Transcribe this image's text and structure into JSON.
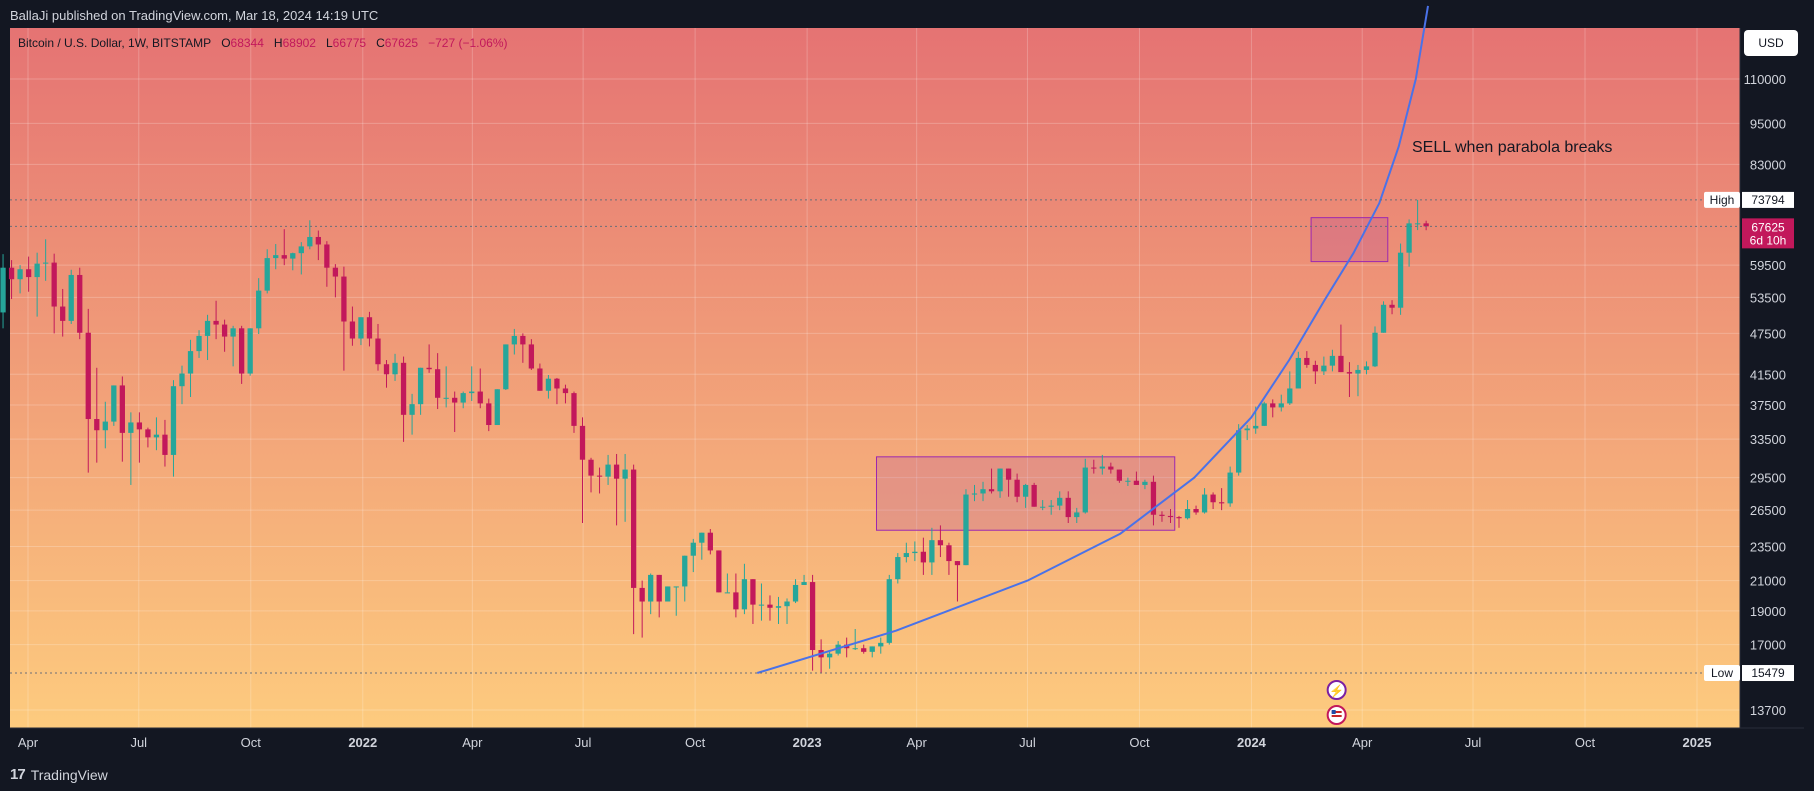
{
  "header": {
    "publisher_line": "BallaJi published on TradingView.com, Mar 18, 2024 14:19 UTC"
  },
  "footer": {
    "brand": "TradingView"
  },
  "legend": {
    "symbol": "Bitcoin / U.S. Dollar, 1W, BITSTAMP",
    "open_label": "O",
    "open": "68344",
    "high_label": "H",
    "high": "68902",
    "low_label": "L",
    "low": "66775",
    "close_label": "C",
    "close": "67625",
    "change": "−727 (−1.06%)"
  },
  "currency_button": "USD",
  "annotation": "SELL when parabola breaks",
  "price_tags": {
    "high_label": "High",
    "high_value": "73794",
    "low_label": "Low",
    "low_value": "15479",
    "last_value": "67625",
    "countdown": "6d 10h"
  },
  "colors": {
    "up": "#26a69a",
    "down": "#c2185b",
    "parabola": "#4a72e8",
    "box": "#9c27b0",
    "bg_top": "#e57373",
    "bg_bottom": "#fdcb7e"
  },
  "chart_data": {
    "type": "candlestick",
    "title": "Bitcoin / U.S. Dollar, 1W, BITSTAMP",
    "y_scale": "log",
    "ylim": [
      12900,
      145000
    ],
    "y_ticks": [
      13700,
      17000,
      19000,
      21000,
      23500,
      26500,
      29500,
      33500,
      37500,
      41500,
      47500,
      53500,
      59500,
      83000,
      95000,
      110000
    ],
    "x_ticks": [
      {
        "date": "2021-04-01",
        "label": "Apr"
      },
      {
        "date": "2021-07-01",
        "label": "Jul"
      },
      {
        "date": "2021-10-01",
        "label": "Oct"
      },
      {
        "date": "2022-01-01",
        "label": "2022"
      },
      {
        "date": "2022-04-01",
        "label": "Apr"
      },
      {
        "date": "2022-07-01",
        "label": "Jul"
      },
      {
        "date": "2022-10-01",
        "label": "Oct"
      },
      {
        "date": "2023-01-01",
        "label": "2023"
      },
      {
        "date": "2023-04-01",
        "label": "Apr"
      },
      {
        "date": "2023-07-01",
        "label": "Jul"
      },
      {
        "date": "2023-10-01",
        "label": "Oct"
      },
      {
        "date": "2024-01-01",
        "label": "2024"
      },
      {
        "date": "2024-04-01",
        "label": "Apr"
      },
      {
        "date": "2024-07-01",
        "label": "Jul"
      },
      {
        "date": "2024-10-01",
        "label": "Oct"
      },
      {
        "date": "2025-01-01",
        "label": "2025"
      }
    ],
    "candles_start_date": "2021-03-08",
    "candles_weekly": [
      [
        50900,
        61700,
        48300,
        59000
      ],
      [
        59000,
        60500,
        53200,
        56800
      ],
      [
        56800,
        59500,
        54200,
        58700
      ],
      [
        58700,
        61200,
        54500,
        57200
      ],
      [
        57200,
        62000,
        50200,
        59800
      ],
      [
        59800,
        64800,
        56500,
        60000
      ],
      [
        60000,
        61800,
        47500,
        51900
      ],
      [
        51900,
        55000,
        47000,
        49500
      ],
      [
        49500,
        58600,
        49000,
        57600
      ],
      [
        57600,
        59000,
        46600,
        47600
      ],
      [
        47600,
        51500,
        30000,
        35800
      ],
      [
        35800,
        42400,
        31000,
        34500
      ],
      [
        34500,
        37900,
        32500,
        35500
      ],
      [
        35500,
        39900,
        35000,
        40000
      ],
      [
        40000,
        41200,
        31100,
        34200
      ],
      [
        34200,
        36600,
        28800,
        35400
      ],
      [
        35400,
        36600,
        31000,
        34600
      ],
      [
        34600,
        34800,
        32600,
        33700
      ],
      [
        33700,
        36000,
        32300,
        34000
      ],
      [
        34000,
        35700,
        30600,
        31800
      ],
      [
        31800,
        40700,
        29600,
        39900
      ],
      [
        39900,
        42700,
        37600,
        41600
      ],
      [
        41600,
        46500,
        38500,
        44800
      ],
      [
        44800,
        48000,
        43800,
        47100
      ],
      [
        47100,
        50500,
        43500,
        49500
      ],
      [
        49500,
        52900,
        46600,
        48900
      ],
      [
        48900,
        49700,
        44700,
        47000
      ],
      [
        47000,
        48700,
        42600,
        48300
      ],
      [
        48300,
        48700,
        40200,
        41600
      ],
      [
        41600,
        48300,
        41300,
        48300
      ],
      [
        48300,
        57000,
        47400,
        54700
      ],
      [
        54700,
        62700,
        54200,
        60900
      ],
      [
        60900,
        63800,
        58700,
        61500
      ],
      [
        61500,
        67000,
        59500,
        60800
      ],
      [
        60800,
        62000,
        58500,
        61900
      ],
      [
        61900,
        64200,
        57700,
        63300
      ],
      [
        63300,
        69000,
        62700,
        65300
      ],
      [
        65300,
        66700,
        60500,
        63700
      ],
      [
        63700,
        64400,
        55400,
        59000
      ],
      [
        59000,
        59700,
        53500,
        57300
      ],
      [
        57300,
        59200,
        42000,
        49400
      ],
      [
        49400,
        51900,
        45600,
        46700
      ],
      [
        46700,
        49200,
        45700,
        50100
      ],
      [
        50100,
        51000,
        45500,
        46700
      ],
      [
        46700,
        49000,
        42000,
        42900
      ],
      [
        42900,
        43500,
        39700,
        41500
      ],
      [
        41500,
        44400,
        40600,
        43100
      ],
      [
        43100,
        44000,
        33200,
        36300
      ],
      [
        36300,
        38900,
        34000,
        37600
      ],
      [
        37600,
        42000,
        36300,
        42400
      ],
      [
        42400,
        45800,
        41700,
        42200
      ],
      [
        42200,
        44500,
        37000,
        38400
      ],
      [
        38400,
        42600,
        37200,
        38400
      ],
      [
        38400,
        39200,
        34300,
        37800
      ],
      [
        37800,
        39200,
        37100,
        39000
      ],
      [
        39000,
        42600,
        38000,
        39200
      ],
      [
        39200,
        42300,
        37100,
        37700
      ],
      [
        37700,
        38300,
        34400,
        35100
      ],
      [
        35100,
        39500,
        37500,
        39500
      ],
      [
        39500,
        45000,
        39400,
        45800
      ],
      [
        45800,
        48200,
        44300,
        47100
      ],
      [
        47100,
        47500,
        43100,
        45800
      ],
      [
        45800,
        46600,
        42100,
        42300
      ],
      [
        42300,
        43000,
        39300,
        39300
      ],
      [
        39300,
        41400,
        38300,
        40900
      ],
      [
        40900,
        41000,
        37600,
        39600
      ],
      [
        39600,
        40100,
        37700,
        39000
      ],
      [
        39000,
        39200,
        34200,
        35000
      ],
      [
        35000,
        36000,
        25400,
        31300
      ],
      [
        31300,
        31500,
        28100,
        29700
      ],
      [
        29700,
        30500,
        28000,
        29600
      ],
      [
        29600,
        31800,
        28800,
        30800
      ],
      [
        30800,
        31900,
        25200,
        29400
      ],
      [
        29400,
        31900,
        25500,
        30300
      ],
      [
        30300,
        30800,
        17600,
        20500
      ],
      [
        20500,
        21000,
        17400,
        19600
      ],
      [
        19600,
        21500,
        18800,
        21400
      ],
      [
        21400,
        20600,
        18600,
        19600
      ],
      [
        19600,
        20500,
        19600,
        20600
      ],
      [
        20600,
        20600,
        18700,
        20600
      ],
      [
        20600,
        22800,
        19600,
        22800
      ],
      [
        22800,
        24100,
        21600,
        23800
      ],
      [
        23800,
        23900,
        22500,
        24600
      ],
      [
        24600,
        24900,
        22900,
        23200
      ],
      [
        23200,
        22500,
        20900,
        20200
      ],
      [
        20200,
        21500,
        20400,
        20200
      ],
      [
        20200,
        21500,
        18600,
        19100
      ],
      [
        19100,
        22200,
        18800,
        21100
      ],
      [
        21100,
        20700,
        18200,
        19400
      ],
      [
        19400,
        20800,
        18400,
        19400
      ],
      [
        19400,
        20000,
        18400,
        19200
      ],
      [
        19200,
        19900,
        18200,
        19300
      ],
      [
        19300,
        19800,
        18200,
        19600
      ],
      [
        19600,
        21100,
        19500,
        20700
      ],
      [
        20700,
        21400,
        20700,
        20900
      ],
      [
        20900,
        21400,
        15600,
        16700
      ],
      [
        16700,
        17300,
        15500,
        16300
      ],
      [
        16300,
        16600,
        15700,
        16500
      ],
      [
        16500,
        17200,
        16400,
        17000
      ],
      [
        17000,
        17400,
        16300,
        16800
      ],
      [
        16800,
        17900,
        16700,
        16800
      ],
      [
        16800,
        17000,
        16500,
        16600
      ],
      [
        16600,
        16800,
        16300,
        16900
      ],
      [
        16900,
        17400,
        16500,
        17100
      ],
      [
        17100,
        21400,
        17000,
        21100
      ],
      [
        21100,
        23000,
        20800,
        22700
      ],
      [
        22700,
        23800,
        22300,
        23000
      ],
      [
        23000,
        23900,
        22400,
        23100
      ],
      [
        23100,
        24200,
        21400,
        22300
      ],
      [
        22300,
        25000,
        21400,
        24000
      ],
      [
        24000,
        25200,
        22700,
        23600
      ],
      [
        23600,
        23800,
        21400,
        22400
      ],
      [
        22400,
        21500,
        19600,
        22100
      ],
      [
        22100,
        28400,
        22100,
        27900
      ],
      [
        27900,
        28800,
        27300,
        28000
      ],
      [
        28000,
        29100,
        27300,
        28400
      ],
      [
        28400,
        30400,
        28000,
        28200
      ],
      [
        28200,
        30000,
        27600,
        30400
      ],
      [
        30400,
        30200,
        27700,
        29300
      ],
      [
        29300,
        29900,
        27200,
        27700
      ],
      [
        27700,
        28900,
        26700,
        28800
      ],
      [
        28800,
        29000,
        27700,
        26800
      ],
      [
        26800,
        27400,
        26500,
        26800
      ],
      [
        26800,
        27400,
        26100,
        26900
      ],
      [
        26900,
        28200,
        26500,
        27600
      ],
      [
        27600,
        28200,
        25400,
        25900
      ],
      [
        25900,
        26700,
        25400,
        26300
      ],
      [
        26300,
        31400,
        26200,
        30500
      ],
      [
        30500,
        31300,
        29900,
        30400
      ],
      [
        30400,
        31800,
        29800,
        30600
      ],
      [
        30600,
        31000,
        29900,
        30300
      ],
      [
        30300,
        29900,
        29000,
        29200
      ],
      [
        29200,
        29500,
        28700,
        29200
      ],
      [
        29200,
        30100,
        28900,
        28800
      ],
      [
        28800,
        29300,
        28400,
        29100
      ],
      [
        29100,
        29700,
        25200,
        26100
      ],
      [
        26100,
        26400,
        25500,
        26000
      ],
      [
        26000,
        26600,
        25400,
        25900
      ],
      [
        25900,
        26000,
        25000,
        25800
      ],
      [
        25800,
        27400,
        25700,
        26600
      ],
      [
        26600,
        26900,
        26100,
        26300
      ],
      [
        26300,
        28500,
        26200,
        27900
      ],
      [
        27900,
        28100,
        26600,
        27200
      ],
      [
        27200,
        28500,
        26500,
        27100
      ],
      [
        27100,
        30600,
        26800,
        30000
      ],
      [
        30000,
        35200,
        29700,
        34500
      ],
      [
        34500,
        35100,
        33400,
        34700
      ],
      [
        34700,
        37300,
        34100,
        35000
      ],
      [
        35000,
        37900,
        35100,
        37700
      ],
      [
        37700,
        38200,
        36000,
        37200
      ],
      [
        37200,
        38800,
        36700,
        37700
      ],
      [
        37700,
        41900,
        37500,
        39600
      ],
      [
        39600,
        44700,
        40000,
        43800
      ],
      [
        43800,
        44800,
        42400,
        42800
      ],
      [
        42800,
        43400,
        40200,
        41900
      ],
      [
        41900,
        44000,
        41400,
        42700
      ],
      [
        42700,
        45000,
        41900,
        44100
      ],
      [
        44100,
        48900,
        42600,
        41800
      ],
      [
        41800,
        43200,
        38500,
        41600
      ],
      [
        41600,
        42800,
        38600,
        42100
      ],
      [
        42100,
        43300,
        41500,
        42600
      ],
      [
        42600,
        48600,
        42500,
        47600
      ],
      [
        47600,
        52800,
        47700,
        52200
      ],
      [
        52200,
        53000,
        50600,
        51700
      ],
      [
        51700,
        63900,
        50500,
        62000
      ],
      [
        62000,
        69200,
        59200,
        68300
      ],
      [
        68300,
        73794,
        66800,
        68300
      ],
      [
        68300,
        68902,
        66775,
        67625
      ]
    ]
  }
}
